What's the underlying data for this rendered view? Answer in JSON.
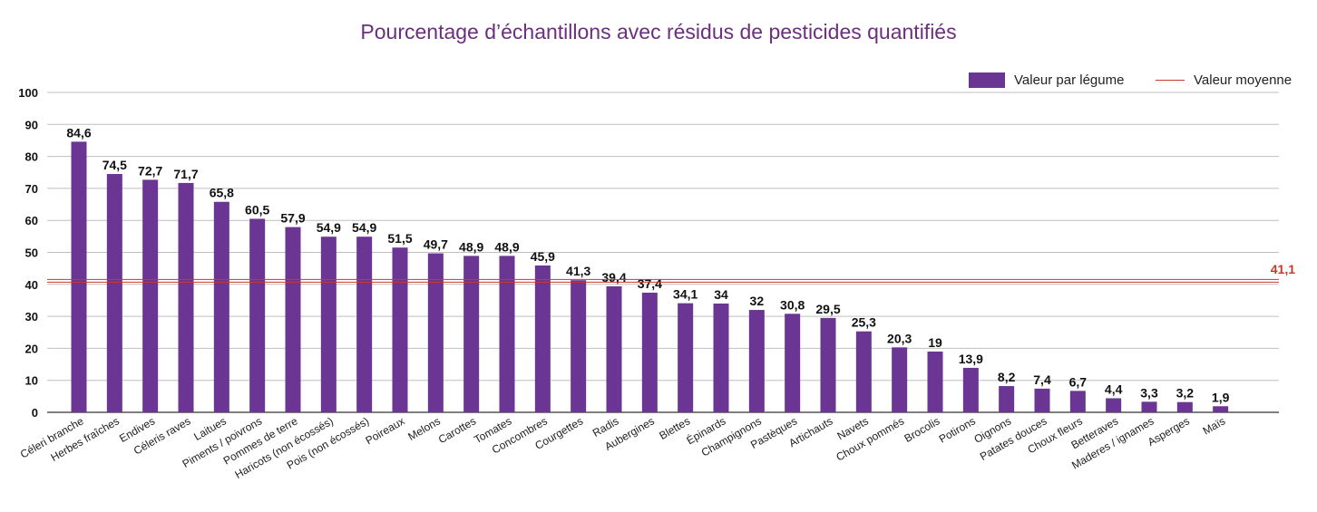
{
  "chart_data": {
    "type": "bar",
    "title": "Pourcentage d’échantillons avec résidus de pesticides quantifiés",
    "ylim": [
      0,
      100
    ],
    "yticks": [
      0,
      10,
      20,
      30,
      40,
      50,
      60,
      70,
      80,
      90,
      100
    ],
    "grid": true,
    "legend_position": "top-right",
    "categories": [
      "Céleri branche",
      "Herbes fraîches",
      "Endives",
      "Céleris raves",
      "Laitues",
      "Piments / poivrons",
      "Pommes de terre",
      "Haricots (non écossés)",
      "Pois (non écossés)",
      "Poireaux",
      "Melons",
      "Carottes",
      "Tomates",
      "Concombres",
      "Courgettes",
      "Radis",
      "Aubergines",
      "Blettes",
      "Épinards",
      "Champignons",
      "Pastèques",
      "Artichauts",
      "Navets",
      "Choux pommés",
      "Brocolis",
      "Potirons",
      "Oignons",
      "Patates douces",
      "Choux fleurs",
      "Betteraves",
      "Maderes / ignames",
      "Asperges",
      "Maïs"
    ],
    "series": [
      {
        "name": "Valeur par légume",
        "color": "#6a3593",
        "values": [
          84.6,
          74.5,
          72.7,
          71.7,
          65.8,
          60.5,
          57.9,
          54.9,
          54.9,
          51.5,
          49.7,
          48.9,
          48.9,
          45.9,
          41.3,
          39.4,
          37.4,
          34.1,
          34,
          32,
          30.8,
          29.5,
          25.3,
          20.3,
          19,
          13.9,
          8.2,
          7.4,
          6.7,
          4.4,
          3.3,
          3.2,
          1.9
        ],
        "labels": [
          "84,6",
          "74,5",
          "72,7",
          "71,7",
          "65,8",
          "60,5",
          "57,9",
          "54,9",
          "54,9",
          "51,5",
          "49,7",
          "48,9",
          "48,9",
          "45,9",
          "41,3",
          "39,4",
          "37,4",
          "34,1",
          "34",
          "32",
          "30,8",
          "29,5",
          "25,3",
          "20,3",
          "19",
          "13,9",
          "8,2",
          "7,4",
          "6,7",
          "4,4",
          "3,3",
          "3,2",
          "1,9"
        ]
      }
    ],
    "average": {
      "name": "Valeur moyenne",
      "value": 41.1,
      "label": "41,1",
      "color": "#c8392d"
    }
  }
}
